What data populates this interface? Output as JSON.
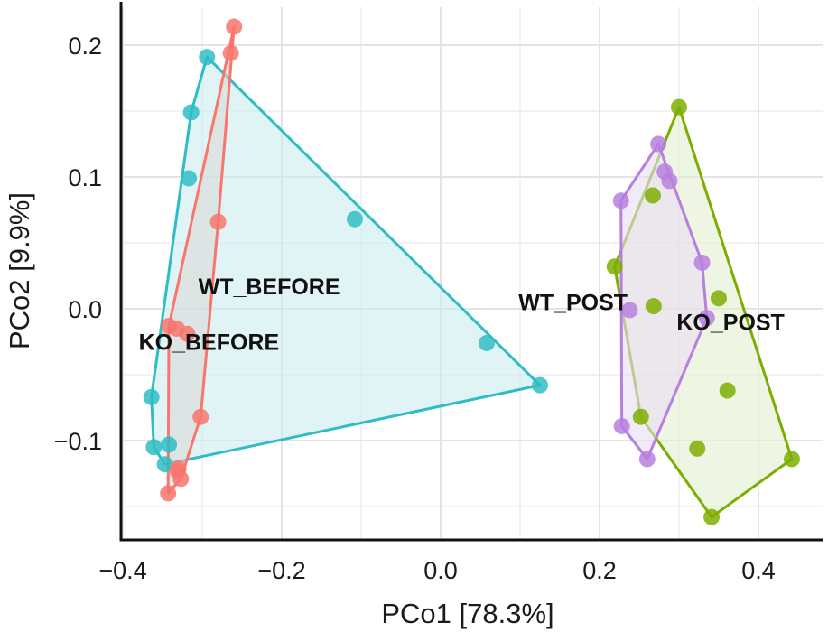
{
  "chart_data": {
    "type": "scatter",
    "title": "",
    "xlabel": "PCo1 [78.3%]",
    "ylabel": "PCo2 [9.9%]",
    "xlim": [
      -0.4,
      0.43
    ],
    "ylim": [
      -0.175,
      0.23
    ],
    "x_ticks": [
      -0.4,
      -0.2,
      0.0,
      0.2,
      0.4
    ],
    "x_tick_labels": [
      "−0.4",
      "−0.2",
      "0.0",
      "0.2",
      "0.4"
    ],
    "y_ticks": [
      -0.1,
      0.0,
      0.1,
      0.2
    ],
    "y_tick_labels": [
      "−0.1",
      "0.0",
      "0.1",
      "0.2"
    ],
    "x_minor": [
      -0.3,
      -0.1,
      0.1,
      0.3
    ],
    "y_minor": [
      -0.15,
      -0.05,
      0.05,
      0.15
    ],
    "grid": true,
    "legend": "none",
    "hulls": true,
    "series": [
      {
        "name": "KO_BEFORE",
        "color": "#F8766D",
        "fill": "#D9D9D9",
        "label_pos": [
          -0.38,
          -0.025
        ],
        "points": [
          [
            -0.26,
            0.214
          ],
          [
            -0.264,
            0.194
          ],
          [
            -0.28,
            0.066
          ],
          [
            -0.302,
            -0.082
          ],
          [
            -0.342,
            -0.013
          ],
          [
            -0.332,
            -0.015
          ],
          [
            -0.319,
            -0.019
          ],
          [
            -0.33,
            -0.121
          ],
          [
            -0.327,
            -0.129
          ],
          [
            -0.343,
            -0.14
          ],
          [
            -0.331,
            -0.123
          ]
        ]
      },
      {
        "name": "WT_BEFORE",
        "color": "#2FBDC4",
        "fill": "#CDEDEE",
        "label_pos": [
          -0.305,
          0.017
        ],
        "points": [
          [
            -0.294,
            0.191
          ],
          [
            -0.314,
            0.149
          ],
          [
            -0.317,
            0.099
          ],
          [
            -0.108,
            0.068
          ],
          [
            0.058,
            -0.026
          ],
          [
            0.125,
            -0.058
          ],
          [
            -0.364,
            -0.067
          ],
          [
            -0.361,
            -0.105
          ],
          [
            -0.342,
            -0.103
          ],
          [
            -0.347,
            -0.118
          ]
        ]
      },
      {
        "name": "WT_POST",
        "color": "#B77FDF",
        "fill": "#E7DDF3",
        "label_pos": [
          0.098,
          0.005
        ],
        "points": [
          [
            0.274,
            0.125
          ],
          [
            0.282,
            0.104
          ],
          [
            0.288,
            0.097
          ],
          [
            0.227,
            0.082
          ],
          [
            0.329,
            0.035
          ],
          [
            0.238,
            -0.001
          ],
          [
            0.335,
            -0.007
          ],
          [
            0.228,
            -0.089
          ],
          [
            0.26,
            -0.114
          ]
        ]
      },
      {
        "name": "KO_POST",
        "color": "#7CAE00",
        "fill": "#E4EFD0",
        "label_pos": [
          0.297,
          -0.01
        ],
        "points": [
          [
            0.3,
            0.153
          ],
          [
            0.267,
            0.086
          ],
          [
            0.219,
            0.032
          ],
          [
            0.268,
            0.002
          ],
          [
            0.35,
            0.008
          ],
          [
            0.361,
            -0.062
          ],
          [
            0.252,
            -0.082
          ],
          [
            0.323,
            -0.106
          ],
          [
            0.442,
            -0.114
          ],
          [
            0.341,
            -0.158
          ]
        ]
      }
    ]
  }
}
